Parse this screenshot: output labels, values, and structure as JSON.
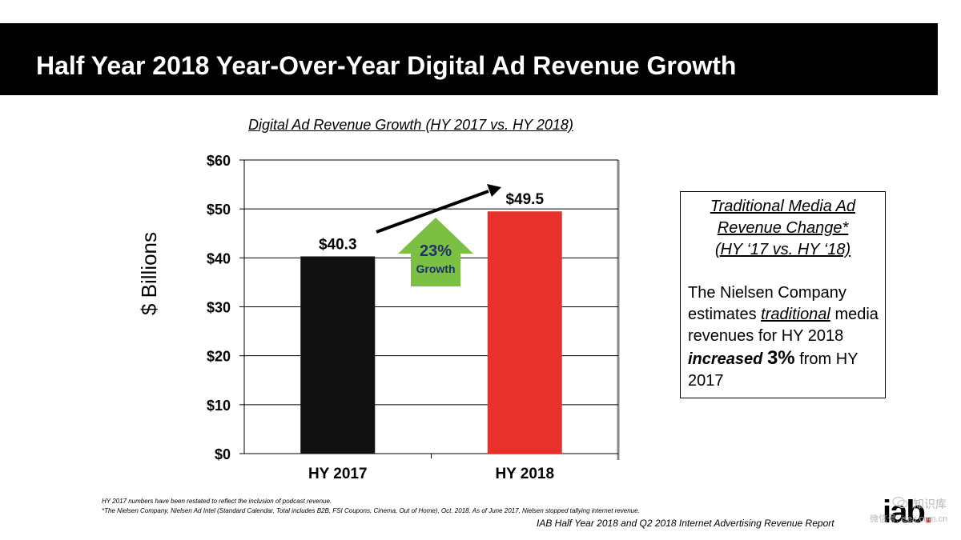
{
  "slide": {
    "title": "Half Year 2018 Year-Over-Year Digital Ad Revenue Growth"
  },
  "chart_data": {
    "type": "bar",
    "title": "Digital Ad Revenue Growth (HY 2017 vs. HY 2018)",
    "xlabel": "",
    "ylabel": "$ Billions",
    "categories": [
      "HY 2017",
      "HY 2018"
    ],
    "values": [
      40.3,
      49.5
    ],
    "value_labels": [
      "$40.3",
      "$49.5"
    ],
    "bar_colors": [
      "#111111",
      "#e8312a"
    ],
    "ylim": [
      0,
      60
    ],
    "yticks": [
      0,
      10,
      20,
      30,
      40,
      50,
      60
    ],
    "ytick_labels": [
      "$0",
      "$10",
      "$20",
      "$30",
      "$40",
      "$50",
      "$60"
    ],
    "grid": true,
    "legend": "none",
    "annotations": {
      "growth_pct": "23%",
      "growth_label": "Growth",
      "growth_arrow_color": "#7bc043",
      "growth_text_color": "#1f2f6b"
    }
  },
  "info_box": {
    "heading_line1": "Traditional Media Ad",
    "heading_line2": "Revenue Change*",
    "heading_line3": "(HY ‘17 vs. HY ‘18)",
    "body_pre": "The Nielsen Company estimates",
    "body_traditional": "traditional",
    "body_mid": "media revenues for HY 2018",
    "body_increased": "increased",
    "body_pct": "3%",
    "body_post": "from HY 2017"
  },
  "footnotes": {
    "note1": "HY 2017 numbers have been restated to reflect the inclusion of podcast revenue.",
    "note2": "*The Nielsen Company, Nielsen Ad Intel (Standard Calendar, Total includes B2B, FSI Coupons, Cinema, Out of Home), Oct. 2018.  As of June 2017, Nielsen stopped tallying internet revenue.",
    "source": "IAB Half Year 2018 and Q2 2018 Internet Advertising Revenue Report"
  },
  "logo": {
    "text": "iab",
    "dot": "."
  },
  "watermark": {
    "line1": "知识库",
    "line2": "微信号: iseit.com.cn"
  }
}
